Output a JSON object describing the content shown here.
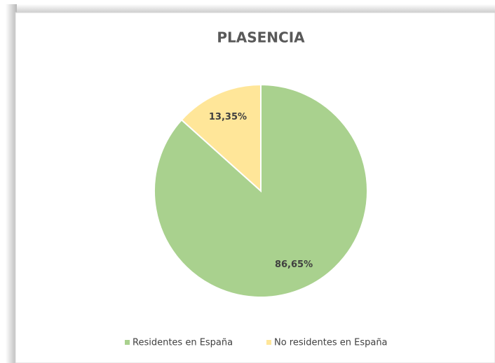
{
  "chart_data": {
    "type": "pie",
    "title": "PLASENCIA",
    "categories": [
      "Residentes en España",
      "No residentes en España"
    ],
    "values": [
      86.65,
      13.35
    ],
    "value_labels": [
      "86,65%",
      "13,35%"
    ],
    "colors": [
      "#a9d18e",
      "#ffe699"
    ],
    "legend": "bottom"
  }
}
